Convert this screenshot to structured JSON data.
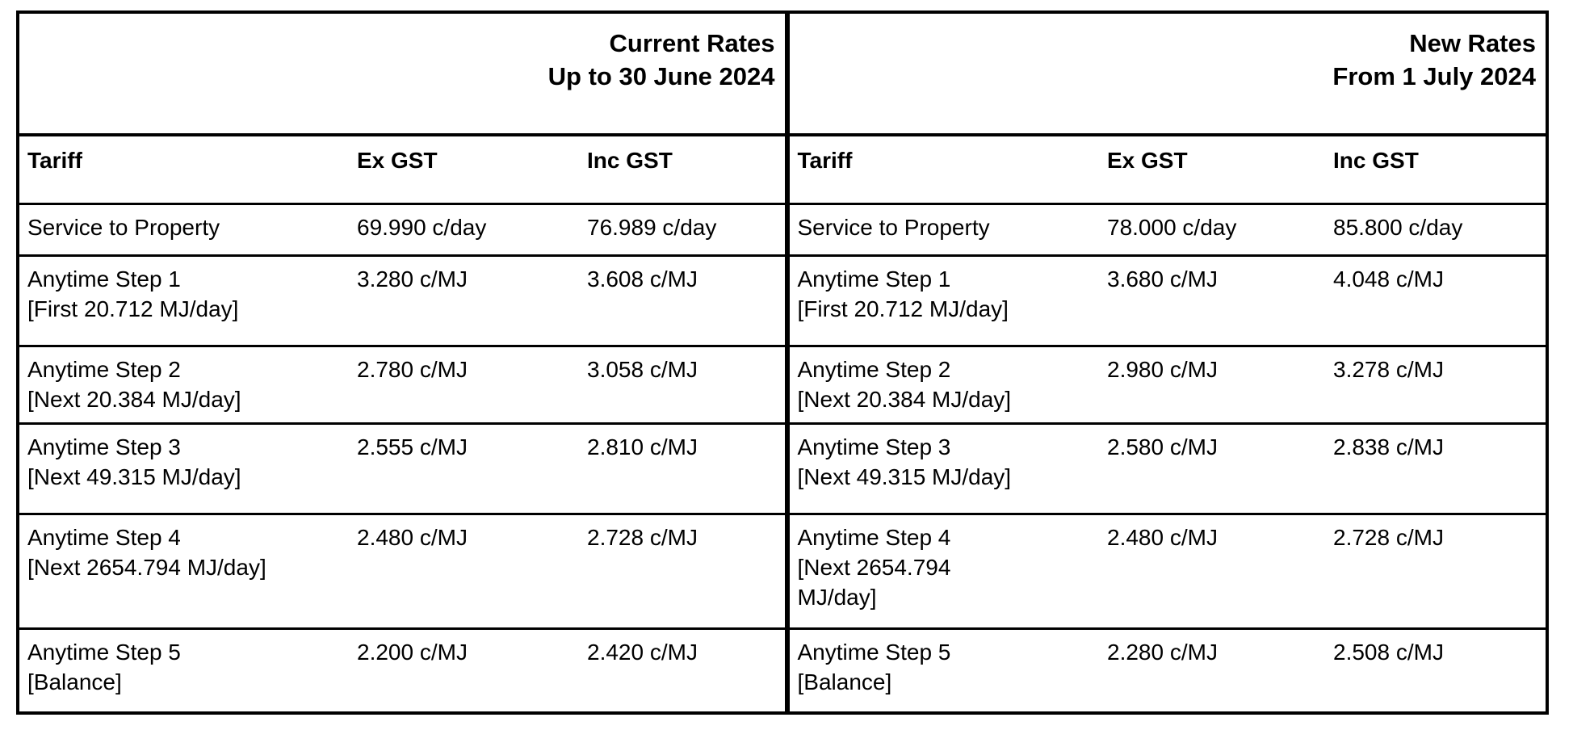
{
  "tables": [
    {
      "id": "current-rates",
      "title_line1": "Current Rates",
      "title_line2": "Up to 30 June 2024",
      "columns": [
        "Tariff",
        "Ex GST",
        "Inc GST"
      ],
      "rows": [
        {
          "tariff_lines": [
            "Service to Property"
          ],
          "ex_gst": "69.990 c/day",
          "inc_gst": "76.989 c/day"
        },
        {
          "tariff_lines": [
            "Anytime Step 1",
            "[First 20.712 MJ/day]"
          ],
          "ex_gst": "3.280 c/MJ",
          "inc_gst": "3.608 c/MJ"
        },
        {
          "tariff_lines": [
            "Anytime Step 2",
            "[Next 20.384 MJ/day]"
          ],
          "ex_gst": "2.780 c/MJ",
          "inc_gst": "3.058 c/MJ"
        },
        {
          "tariff_lines": [
            "Anytime Step 3",
            "[Next 49.315 MJ/day]"
          ],
          "ex_gst": "2.555 c/MJ",
          "inc_gst": "2.810 c/MJ"
        },
        {
          "tariff_lines": [
            "Anytime Step 4",
            "[Next 2654.794 MJ/day]"
          ],
          "ex_gst": "2.480 c/MJ",
          "inc_gst": "2.728 c/MJ"
        },
        {
          "tariff_lines": [
            "Anytime Step 5",
            "[Balance]"
          ],
          "ex_gst": "2.200 c/MJ",
          "inc_gst": "2.420 c/MJ"
        }
      ]
    },
    {
      "id": "new-rates",
      "title_line1": "New Rates",
      "title_line2": "From 1 July 2024",
      "columns": [
        "Tariff",
        "Ex GST",
        "Inc GST"
      ],
      "rows": [
        {
          "tariff_lines": [
            "Service to Property"
          ],
          "ex_gst": "78.000 c/day",
          "inc_gst": "85.800 c/day"
        },
        {
          "tariff_lines": [
            "Anytime Step 1",
            "[First 20.712 MJ/day]"
          ],
          "ex_gst": "3.680 c/MJ",
          "inc_gst": "4.048 c/MJ"
        },
        {
          "tariff_lines": [
            "Anytime Step 2",
            "[Next 20.384 MJ/day]"
          ],
          "ex_gst": "2.980 c/MJ",
          "inc_gst": "3.278 c/MJ"
        },
        {
          "tariff_lines": [
            "Anytime Step 3",
            "[Next 49.315 MJ/day]"
          ],
          "ex_gst": "2.580 c/MJ",
          "inc_gst": "2.838 c/MJ"
        },
        {
          "tariff_lines": [
            "Anytime Step 4",
            "[Next 2654.794",
            "MJ/day]"
          ],
          "ex_gst": "2.480 c/MJ",
          "inc_gst": "2.728 c/MJ"
        },
        {
          "tariff_lines": [
            "Anytime Step 5",
            "[Balance]"
          ],
          "ex_gst": "2.280 c/MJ",
          "inc_gst": "2.508 c/MJ"
        }
      ]
    }
  ],
  "colors": {
    "border": "#000000",
    "text": "#000000",
    "background": "#ffffff"
  }
}
